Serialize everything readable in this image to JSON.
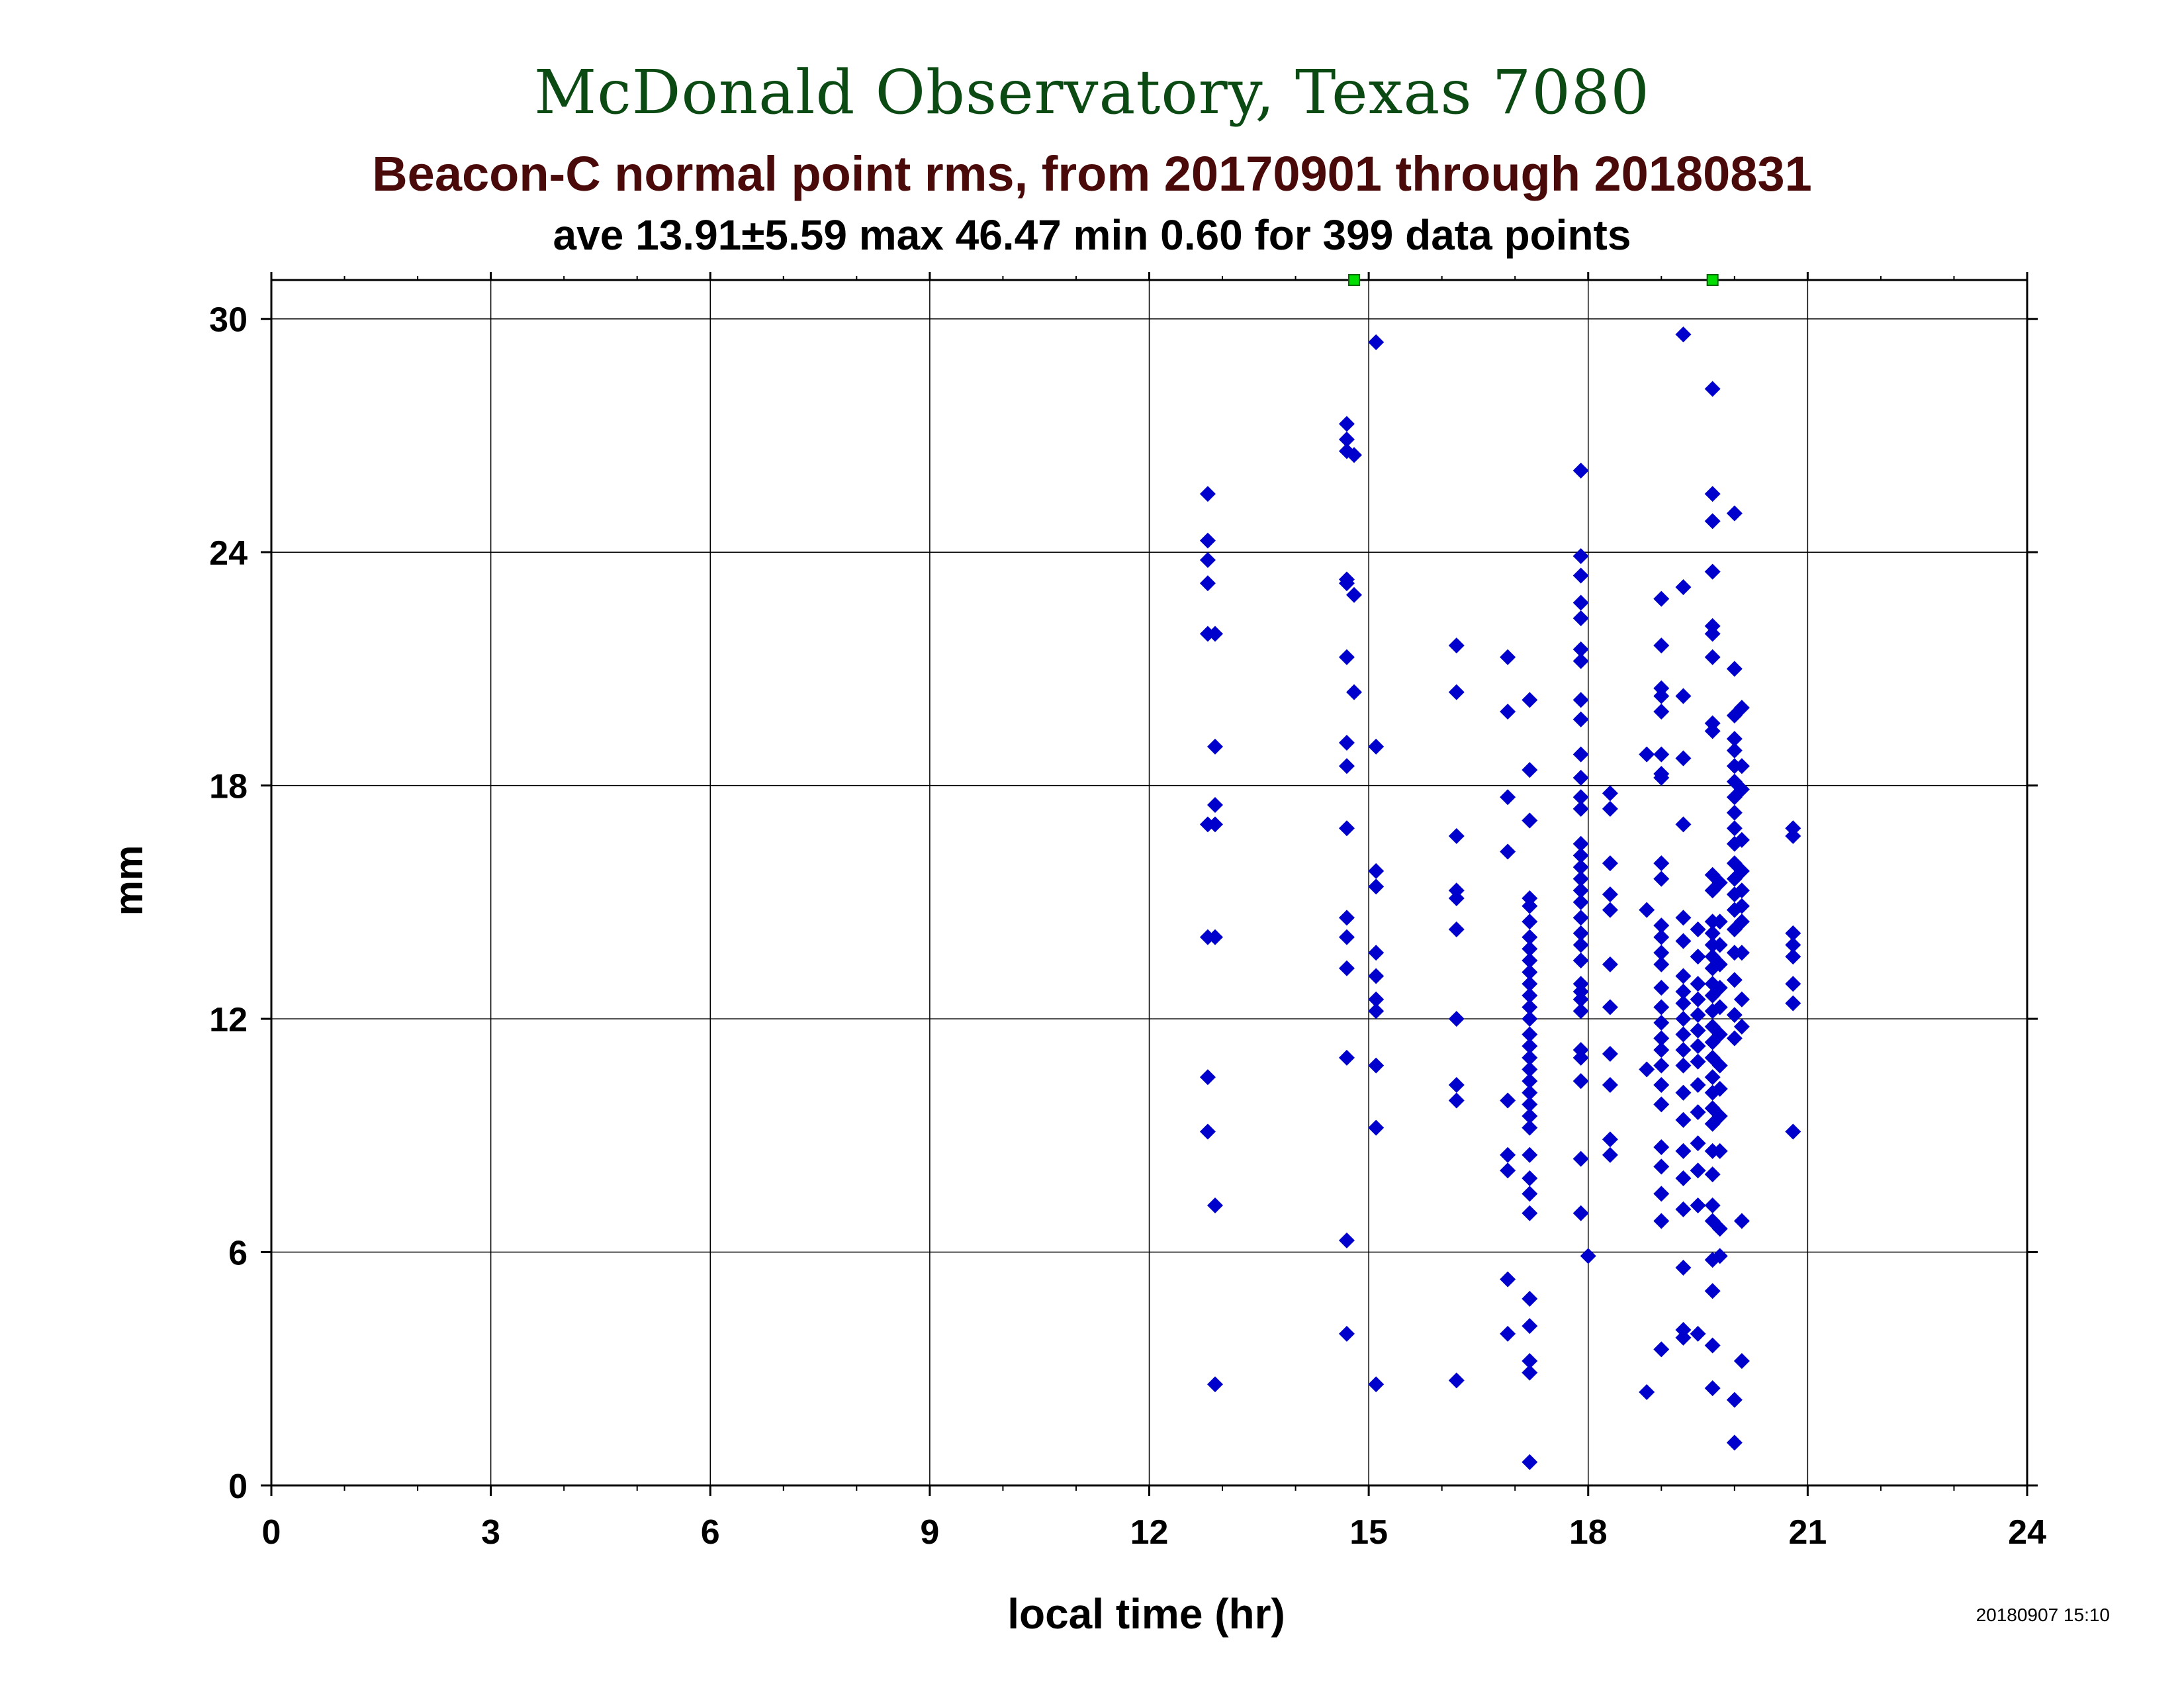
{
  "header": {
    "title": "McDonald Observatory, Texas 7080",
    "subtitle": "Beacon-C normal point rms, from 20170901 through 20180831",
    "stats": "ave 13.91±5.59 max 46.47 min 0.60 for 399 data points"
  },
  "footer": {
    "timestamp": "20180907 15:10"
  },
  "colors": {
    "title": "#0b4a12",
    "subtitle": "#4a0a0a",
    "points": "#0000cc",
    "offscale_markers": "#00dd00",
    "grid": "#000000"
  },
  "chart_data": {
    "type": "scatter",
    "title": "Beacon-C normal point rms, from 20170901 through 20180831",
    "xlabel": "local time (hr)",
    "ylabel": "mm",
    "xlim": [
      0,
      24
    ],
    "ylim": [
      0,
      31
    ],
    "xticks": [
      0,
      3,
      6,
      9,
      12,
      15,
      18,
      21,
      24
    ],
    "yticks": [
      0,
      6,
      12,
      18,
      24,
      30
    ],
    "grid": true,
    "marker": "diamond",
    "offscale_points": [
      {
        "x": 14.8,
        "y": 31
      },
      {
        "x": 19.7,
        "y": 31
      }
    ],
    "points": [
      [
        12.8,
        25.5
      ],
      [
        12.8,
        24.3
      ],
      [
        12.8,
        23.8
      ],
      [
        12.8,
        23.2
      ],
      [
        12.8,
        21.9
      ],
      [
        12.9,
        21.9
      ],
      [
        12.9,
        19.0
      ],
      [
        12.9,
        17.5
      ],
      [
        12.8,
        17.0
      ],
      [
        12.9,
        17.0
      ],
      [
        12.8,
        14.1
      ],
      [
        12.9,
        14.1
      ],
      [
        12.8,
        10.5
      ],
      [
        12.8,
        9.1
      ],
      [
        12.9,
        7.2
      ],
      [
        12.9,
        2.6
      ],
      [
        14.7,
        27.3
      ],
      [
        14.7,
        26.9
      ],
      [
        14.7,
        26.6
      ],
      [
        14.8,
        26.5
      ],
      [
        14.7,
        23.3
      ],
      [
        14.7,
        23.2
      ],
      [
        14.8,
        22.9
      ],
      [
        14.7,
        21.3
      ],
      [
        14.8,
        20.4
      ],
      [
        14.7,
        19.1
      ],
      [
        14.7,
        18.5
      ],
      [
        14.7,
        16.9
      ],
      [
        14.7,
        14.6
      ],
      [
        14.7,
        14.1
      ],
      [
        14.7,
        13.3
      ],
      [
        14.7,
        11.0
      ],
      [
        14.7,
        6.3
      ],
      [
        14.7,
        3.9
      ],
      [
        15.1,
        29.4
      ],
      [
        15.1,
        19.0
      ],
      [
        15.1,
        15.8
      ],
      [
        15.1,
        15.4
      ],
      [
        15.1,
        13.7
      ],
      [
        15.1,
        13.1
      ],
      [
        15.1,
        12.5
      ],
      [
        15.1,
        12.2
      ],
      [
        15.1,
        10.8
      ],
      [
        15.1,
        9.2
      ],
      [
        15.1,
        2.6
      ],
      [
        16.2,
        21.6
      ],
      [
        16.2,
        20.4
      ],
      [
        16.2,
        16.7
      ],
      [
        16.2,
        15.3
      ],
      [
        16.2,
        15.1
      ],
      [
        16.2,
        14.3
      ],
      [
        16.2,
        12.0
      ],
      [
        16.2,
        10.3
      ],
      [
        16.2,
        9.9
      ],
      [
        16.2,
        2.7
      ],
      [
        16.9,
        21.3
      ],
      [
        16.9,
        19.9
      ],
      [
        16.9,
        17.7
      ],
      [
        16.9,
        16.3
      ],
      [
        16.9,
        9.9
      ],
      [
        16.9,
        8.5
      ],
      [
        16.9,
        8.1
      ],
      [
        16.9,
        5.3
      ],
      [
        16.9,
        3.9
      ],
      [
        17.2,
        20.2
      ],
      [
        17.2,
        18.4
      ],
      [
        17.2,
        17.1
      ],
      [
        17.2,
        15.1
      ],
      [
        17.2,
        14.9
      ],
      [
        17.2,
        14.5
      ],
      [
        17.2,
        14.1
      ],
      [
        17.2,
        13.8
      ],
      [
        17.2,
        13.5
      ],
      [
        17.2,
        13.2
      ],
      [
        17.2,
        12.9
      ],
      [
        17.2,
        12.6
      ],
      [
        17.2,
        12.3
      ],
      [
        17.2,
        12.0
      ],
      [
        17.2,
        11.6
      ],
      [
        17.2,
        11.3
      ],
      [
        17.2,
        11.0
      ],
      [
        17.2,
        10.7
      ],
      [
        17.2,
        10.4
      ],
      [
        17.2,
        10.1
      ],
      [
        17.2,
        9.8
      ],
      [
        17.2,
        9.5
      ],
      [
        17.2,
        9.2
      ],
      [
        17.2,
        8.5
      ],
      [
        17.2,
        7.9
      ],
      [
        17.2,
        7.5
      ],
      [
        17.2,
        7.0
      ],
      [
        17.2,
        4.8
      ],
      [
        17.2,
        4.1
      ],
      [
        17.2,
        3.2
      ],
      [
        17.2,
        2.9
      ],
      [
        17.2,
        0.6
      ],
      [
        17.9,
        26.1
      ],
      [
        17.9,
        23.9
      ],
      [
        17.9,
        23.4
      ],
      [
        17.9,
        22.7
      ],
      [
        17.9,
        22.3
      ],
      [
        17.9,
        21.5
      ],
      [
        17.9,
        21.2
      ],
      [
        17.9,
        20.2
      ],
      [
        17.9,
        19.7
      ],
      [
        17.9,
        18.8
      ],
      [
        17.9,
        18.2
      ],
      [
        17.9,
        17.7
      ],
      [
        17.9,
        17.4
      ],
      [
        17.9,
        16.5
      ],
      [
        17.9,
        16.2
      ],
      [
        17.9,
        15.9
      ],
      [
        17.9,
        15.6
      ],
      [
        17.9,
        15.3
      ],
      [
        17.9,
        15.0
      ],
      [
        17.9,
        14.6
      ],
      [
        17.9,
        14.2
      ],
      [
        17.9,
        13.9
      ],
      [
        17.9,
        13.5
      ],
      [
        17.9,
        12.9
      ],
      [
        17.9,
        12.7
      ],
      [
        17.9,
        12.5
      ],
      [
        17.9,
        12.2
      ],
      [
        17.9,
        11.2
      ],
      [
        17.9,
        11.0
      ],
      [
        17.9,
        10.4
      ],
      [
        17.9,
        8.4
      ],
      [
        17.9,
        7.0
      ],
      [
        18.0,
        5.9
      ],
      [
        18.3,
        17.8
      ],
      [
        18.3,
        17.4
      ],
      [
        18.3,
        16.0
      ],
      [
        18.3,
        15.2
      ],
      [
        18.3,
        14.8
      ],
      [
        18.3,
        13.4
      ],
      [
        18.3,
        12.3
      ],
      [
        18.3,
        11.1
      ],
      [
        18.3,
        10.3
      ],
      [
        18.3,
        8.9
      ],
      [
        18.3,
        8.5
      ],
      [
        18.8,
        18.8
      ],
      [
        18.8,
        14.8
      ],
      [
        18.8,
        10.7
      ],
      [
        18.8,
        2.4
      ],
      [
        19.0,
        22.8
      ],
      [
        19.0,
        21.6
      ],
      [
        19.0,
        20.5
      ],
      [
        19.0,
        20.3
      ],
      [
        19.0,
        19.9
      ],
      [
        19.0,
        18.8
      ],
      [
        19.0,
        18.3
      ],
      [
        19.0,
        18.2
      ],
      [
        19.0,
        16.0
      ],
      [
        19.0,
        15.6
      ],
      [
        19.0,
        14.4
      ],
      [
        19.0,
        14.1
      ],
      [
        19.0,
        13.7
      ],
      [
        19.0,
        13.4
      ],
      [
        19.0,
        12.8
      ],
      [
        19.0,
        12.3
      ],
      [
        19.0,
        11.9
      ],
      [
        19.0,
        11.5
      ],
      [
        19.0,
        11.2
      ],
      [
        19.0,
        10.8
      ],
      [
        19.0,
        10.3
      ],
      [
        19.0,
        9.8
      ],
      [
        19.0,
        8.7
      ],
      [
        19.0,
        8.2
      ],
      [
        19.0,
        7.5
      ],
      [
        19.0,
        6.8
      ],
      [
        19.0,
        3.5
      ],
      [
        19.3,
        23.1
      ],
      [
        19.3,
        20.3
      ],
      [
        19.3,
        18.7
      ],
      [
        19.3,
        17.0
      ],
      [
        19.3,
        14.6
      ],
      [
        19.3,
        14.0
      ],
      [
        19.3,
        13.1
      ],
      [
        19.3,
        12.7
      ],
      [
        19.3,
        12.4
      ],
      [
        19.3,
        12.0
      ],
      [
        19.3,
        11.6
      ],
      [
        19.3,
        11.2
      ],
      [
        19.3,
        10.8
      ],
      [
        19.3,
        10.1
      ],
      [
        19.3,
        9.4
      ],
      [
        19.3,
        8.6
      ],
      [
        19.3,
        7.9
      ],
      [
        19.3,
        7.1
      ],
      [
        19.3,
        5.6
      ],
      [
        19.3,
        4.0
      ],
      [
        19.3,
        3.8
      ],
      [
        19.3,
        29.6
      ],
      [
        19.5,
        14.3
      ],
      [
        19.5,
        13.6
      ],
      [
        19.5,
        12.9
      ],
      [
        19.5,
        12.5
      ],
      [
        19.5,
        12.1
      ],
      [
        19.5,
        11.7
      ],
      [
        19.5,
        11.3
      ],
      [
        19.5,
        10.9
      ],
      [
        19.5,
        10.3
      ],
      [
        19.5,
        9.6
      ],
      [
        19.5,
        8.8
      ],
      [
        19.5,
        8.1
      ],
      [
        19.5,
        7.2
      ],
      [
        19.5,
        3.9
      ],
      [
        19.7,
        28.2
      ],
      [
        19.7,
        25.5
      ],
      [
        19.7,
        24.8
      ],
      [
        19.7,
        23.5
      ],
      [
        19.7,
        22.1
      ],
      [
        19.7,
        21.9
      ],
      [
        19.7,
        21.3
      ],
      [
        19.7,
        19.6
      ],
      [
        19.7,
        19.4
      ],
      [
        19.7,
        15.7
      ],
      [
        19.7,
        15.3
      ],
      [
        19.7,
        14.5
      ],
      [
        19.7,
        14.2
      ],
      [
        19.7,
        13.9
      ],
      [
        19.7,
        13.6
      ],
      [
        19.7,
        13.3
      ],
      [
        19.7,
        12.9
      ],
      [
        19.7,
        12.6
      ],
      [
        19.7,
        12.2
      ],
      [
        19.7,
        11.8
      ],
      [
        19.7,
        11.4
      ],
      [
        19.7,
        11.0
      ],
      [
        19.7,
        10.5
      ],
      [
        19.7,
        10.1
      ],
      [
        19.7,
        9.7
      ],
      [
        19.7,
        9.3
      ],
      [
        19.7,
        8.6
      ],
      [
        19.7,
        8.0
      ],
      [
        19.7,
        7.2
      ],
      [
        19.7,
        6.8
      ],
      [
        19.7,
        5.8
      ],
      [
        19.7,
        5.0
      ],
      [
        19.7,
        3.6
      ],
      [
        19.7,
        2.5
      ],
      [
        19.8,
        15.5
      ],
      [
        19.8,
        14.5
      ],
      [
        19.8,
        13.9
      ],
      [
        19.8,
        13.4
      ],
      [
        19.8,
        12.8
      ],
      [
        19.8,
        12.3
      ],
      [
        19.8,
        11.6
      ],
      [
        19.8,
        10.8
      ],
      [
        19.8,
        10.2
      ],
      [
        19.8,
        9.5
      ],
      [
        19.8,
        8.6
      ],
      [
        19.8,
        6.6
      ],
      [
        19.8,
        5.9
      ],
      [
        20.0,
        25.0
      ],
      [
        20.0,
        21.0
      ],
      [
        20.0,
        19.8
      ],
      [
        20.0,
        19.2
      ],
      [
        20.0,
        18.9
      ],
      [
        20.0,
        18.5
      ],
      [
        20.0,
        18.1
      ],
      [
        20.0,
        17.7
      ],
      [
        20.0,
        17.3
      ],
      [
        20.0,
        16.9
      ],
      [
        20.0,
        16.5
      ],
      [
        20.0,
        16.0
      ],
      [
        20.0,
        15.6
      ],
      [
        20.0,
        15.2
      ],
      [
        20.0,
        14.8
      ],
      [
        20.0,
        14.3
      ],
      [
        20.0,
        13.7
      ],
      [
        20.0,
        13.0
      ],
      [
        20.0,
        12.1
      ],
      [
        20.0,
        11.5
      ],
      [
        20.0,
        2.2
      ],
      [
        20.0,
        1.1
      ],
      [
        20.1,
        20.0
      ],
      [
        20.1,
        18.5
      ],
      [
        20.1,
        17.9
      ],
      [
        20.1,
        16.6
      ],
      [
        20.1,
        15.8
      ],
      [
        20.1,
        15.3
      ],
      [
        20.1,
        14.9
      ],
      [
        20.1,
        14.5
      ],
      [
        20.1,
        13.7
      ],
      [
        20.1,
        12.5
      ],
      [
        20.1,
        11.8
      ],
      [
        20.1,
        6.8
      ],
      [
        20.1,
        3.2
      ],
      [
        20.8,
        16.9
      ],
      [
        20.8,
        16.7
      ],
      [
        20.8,
        14.2
      ],
      [
        20.8,
        13.9
      ],
      [
        20.8,
        13.6
      ],
      [
        20.8,
        12.9
      ],
      [
        20.8,
        12.4
      ],
      [
        20.8,
        9.1
      ]
    ]
  }
}
